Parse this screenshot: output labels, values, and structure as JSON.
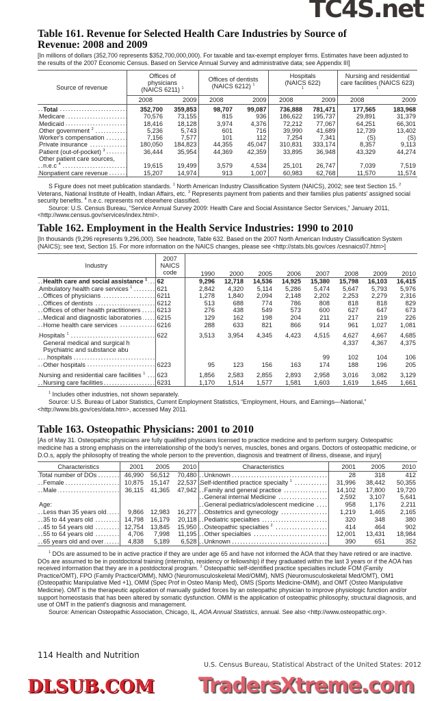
{
  "t161": {
    "title": "Table 161. Revenue for Selected Health Care Industries by Source of Revenue: 2008 and 2009",
    "note": "[In millions of dollars (352,700 represents $352,700,000,000). For taxable and tax-exempt employer firms. Estimates have been adjusted to the results of the 2007 Economic Census. Based on Service Annual Survey and administrative data; see Appendix III]",
    "header": {
      "source": "Source of revenue",
      "groups": [
        {
          "label": "Offices of physicians (NAICS 6211)",
          "sup": "1"
        },
        {
          "label": "Offices of dentists (NAICS 6212)",
          "sup": "1"
        },
        {
          "label": "Hospitals (NAICS 622)",
          "sup": "1"
        },
        {
          "label": "Nursing and residential care facilities (NAICS 623)",
          "sup": "1"
        }
      ],
      "years": [
        "2008",
        "2009"
      ]
    },
    "rows": [
      {
        "label": "Total",
        "bold": true,
        "indent": 1,
        "values": [
          "352,700",
          "359,853",
          "98,707",
          "99,087",
          "736,888",
          "781,471",
          "177,565",
          "183,968"
        ]
      },
      {
        "label": "Medicare",
        "values": [
          "70,576",
          "73,155",
          "815",
          "936",
          "186,622",
          "195,737",
          "29,891",
          "31,379"
        ]
      },
      {
        "label": "Medicaid",
        "values": [
          "18,416",
          "18,128",
          "3,974",
          "4,376",
          "72,212",
          "77,067",
          "64,251",
          "66,301"
        ]
      },
      {
        "label": "Other government",
        "sup": "2",
        "values": [
          "5,236",
          "5,743",
          "601",
          "716",
          "39,990",
          "41,689",
          "12,739",
          "13,402"
        ]
      },
      {
        "label": "Worker's compensation",
        "values": [
          "7,156",
          "7,577",
          "101",
          "112",
          "7,254",
          "7,341",
          "(S)",
          "(S)"
        ]
      },
      {
        "label": "Private insurance",
        "values": [
          "180,050",
          "184,823",
          "44,355",
          "45,047",
          "310,831",
          "333,174",
          "8,357",
          "9,113"
        ]
      },
      {
        "label": "Patient (out-of-pocket)",
        "sup": "3",
        "values": [
          "36,444",
          "35,954",
          "44,369",
          "42,359",
          "33,895",
          "36,948",
          "43,329",
          "44,274"
        ]
      },
      {
        "label": "Other patient care sources,",
        "nodots": true,
        "values": [
          "",
          "",
          "",
          "",
          "",
          "",
          "",
          ""
        ]
      },
      {
        "label": "n.e.c",
        "sup": "4",
        "indent": 1,
        "values": [
          "19,615",
          "19,499",
          "3,579",
          "4,534",
          "25,101",
          "26,747",
          "7,039",
          "7,519"
        ]
      },
      {
        "label": "Nonpatient care revenue",
        "values": [
          "15,207",
          "14,974",
          "913",
          "1,007",
          "60,983",
          "62,768",
          "11,570",
          "11,574"
        ]
      }
    ],
    "footnotes": [
      [
        {
          "t": "S Figure does not meet publication standards. "
        },
        {
          "s": "1"
        },
        {
          "t": " North American Industry Classification System (NAICS), 2002; see text Section 15. "
        },
        {
          "s": "2"
        },
        {
          "t": " Veterans, National Institute of Health, Indian Affairs, etc. "
        },
        {
          "s": "3"
        },
        {
          "t": " Represents payment from patients and their families plus patients' assigned social security benefits. "
        },
        {
          "s": "4"
        },
        {
          "t": " n.e.c. represents not elsewhere classified."
        }
      ],
      [
        {
          "t": "Source: U.S. Census Bureau, “Service Annual Survey 2009: Health Care and Social Assistance Sector Services,” January 2011, <http://www.census.gov/services/index.html>."
        }
      ]
    ]
  },
  "t162": {
    "title": "Table 162. Employment in the Health Service Industries: 1990 to 2010",
    "note": "[In thousands (9,296 represents 9,296,000). See headnote, Table 632. Based on the 2007 North American Industry Classification System (NAICS); see text, Section 15. For more information on the NAICS changes, please see <http://stats.bls.gov/ces /cesnaics07.htm>]",
    "header": {
      "industry": "Industry",
      "code": "2007 NAICS code",
      "years": [
        "1990",
        "2000",
        "2005",
        "2006",
        "2007",
        "2008",
        "2009",
        "2010"
      ]
    },
    "rows": [
      {
        "label": "Health care and social assistance",
        "sup": "1",
        "bold": true,
        "indent": 1,
        "code": "62",
        "values": [
          "9,296",
          "12,718",
          "14,536",
          "14,925",
          "15,380",
          "15,798",
          "16,103",
          "16,415"
        ]
      },
      {
        "label": "Ambulatory health care services",
        "sup": "1",
        "code": "621",
        "values": [
          "2,842",
          "4,320",
          "5,114",
          "5,286",
          "5,474",
          "5,647",
          "5,793",
          "5,976"
        ]
      },
      {
        "label": "Offices of physicians",
        "indent": 1,
        "code": "6211",
        "values": [
          "1,278",
          "1,840",
          "2,094",
          "2,148",
          "2,202",
          "2,253",
          "2,279",
          "2,316"
        ]
      },
      {
        "label": "Offices of dentists",
        "indent": 1,
        "code": "6212",
        "values": [
          "513",
          "688",
          "774",
          "786",
          "808",
          "818",
          "818",
          "829"
        ]
      },
      {
        "label": "Offices of other health practitioners",
        "indent": 1,
        "code": "6213",
        "values": [
          "276",
          "438",
          "549",
          "573",
          "600",
          "627",
          "647",
          "673"
        ]
      },
      {
        "label": "Medical and diagnostic laboratories",
        "indent": 1,
        "code": "6215",
        "values": [
          "129",
          "162",
          "198",
          "204",
          "211",
          "217",
          "219",
          "226"
        ]
      },
      {
        "label": "Home health care services",
        "indent": 1,
        "code": "6216",
        "values": [
          "288",
          "633",
          "821",
          "866",
          "914",
          "961",
          "1,027",
          "1,081"
        ]
      },
      {
        "spacer": true
      },
      {
        "label": "Hospitals",
        "sup": "1",
        "code": "622",
        "values": [
          "3,513",
          "3,954",
          "4,345",
          "4,423",
          "4,515",
          "4,627",
          "4,667",
          "4,685"
        ]
      },
      {
        "label": "General medical and surgical h",
        "indent": 1,
        "nodots": true,
        "code": "",
        "values": [
          "",
          "",
          "",
          "",
          "",
          "4,337",
          "4,367",
          "4,375"
        ]
      },
      {
        "label": "Psychiatric and substance abu",
        "indent": 1,
        "nodots": true,
        "code": "",
        "values": [
          "",
          "",
          "",
          "",
          "",
          "",
          "",
          ""
        ]
      },
      {
        "label": "hospitals",
        "indent": 2,
        "code": "",
        "values": [
          "",
          "",
          "",
          "",
          "99",
          "102",
          "104",
          "106"
        ]
      },
      {
        "label": "Other hospitals",
        "indent": 1,
        "code": "6223",
        "values": [
          "95",
          "123",
          "156",
          "163",
          "174",
          "188",
          "196",
          "205"
        ]
      },
      {
        "spacer": true
      },
      {
        "label": "Nursing and residential care facilities",
        "sup": "1",
        "code": "623",
        "values": [
          "1,856",
          "2,583",
          "2,855",
          "2,893",
          "2,958",
          "3,016",
          "3,082",
          "3,129"
        ]
      },
      {
        "label": "Nursing care facilities",
        "indent": 1,
        "code": "6231",
        "values": [
          "1,170",
          "1,514",
          "1,577",
          "1,581",
          "1,603",
          "1,619",
          "1,645",
          "1,661"
        ]
      }
    ],
    "footnotes": [
      [
        {
          "s": "1"
        },
        {
          "t": " Includes other industries, not shown separately."
        }
      ],
      [
        {
          "t": "Source: U.S. Bureau of Labor Statistics, Current Employment Statistics, “Employment, Hours, and Earnings—National,” <http://www.bls.gov/ces/data.htm>, accessed May 2011."
        }
      ]
    ]
  },
  "t163": {
    "title": "Table 163. Osteopathic Physicians: 2001 to 2010",
    "note": "[As of May 31. Osteopathic physicians are fully qualified physicians licensed to practice medicine and to perform surgery. Osteopathic medicine has a strong emphasis on the interrelationship of the body's nerves, muscles, bones and organs. Doctors of osteopathic medicine, or D.O.s, apply the philosophy of treating the whole person to the prevention, diagnosis and treatment of illness, disease, and injury]",
    "header": {
      "characteristics": "Characteristics",
      "years": [
        "2001",
        "2005",
        "2010"
      ]
    },
    "left": [
      {
        "label": "Total number of DOs",
        "values": [
          "46,990",
          "56,512",
          "70,480"
        ]
      },
      {
        "label": "Female",
        "indent": 1,
        "values": [
          "10,875",
          "15,147",
          "22,537"
        ]
      },
      {
        "label": "Male",
        "indent": 1,
        "values": [
          "36,115",
          "41,365",
          "47,942"
        ]
      },
      {
        "label": "",
        "nodots": true,
        "values": [
          "",
          "",
          ""
        ]
      },
      {
        "label": "Age:",
        "nodots": true,
        "values": [
          "",
          "",
          ""
        ]
      },
      {
        "label": "Less than 35 years old",
        "indent": 1,
        "values": [
          "9,866",
          "12,983",
          "16,277"
        ]
      },
      {
        "label": "35 to 44 years old",
        "indent": 1,
        "values": [
          "14,798",
          "16,179",
          "20,118"
        ]
      },
      {
        "label": "45 to 54 years old",
        "indent": 1,
        "values": [
          "12,754",
          "13,845",
          "15,950"
        ]
      },
      {
        "label": "55 to 64 years old",
        "indent": 1,
        "values": [
          "4,706",
          "7,998",
          "11,195"
        ]
      },
      {
        "label": "65 years old and over",
        "indent": 1,
        "values": [
          "4,838",
          "5,189",
          "6,528"
        ]
      }
    ],
    "right": [
      {
        "label": "Unknown",
        "indent": 1,
        "values": [
          "28",
          "318",
          "412"
        ]
      },
      {
        "label": "Self-identified practice specialty",
        "sup": "1",
        "values": [
          "31,996",
          "38,442",
          "50,355"
        ]
      },
      {
        "label": "Family and general practice",
        "indent": 1,
        "values": [
          "14,102",
          "17,800",
          "19,720"
        ]
      },
      {
        "label": "General internal Medicine",
        "indent": 1,
        "values": [
          "2,592",
          "3,107",
          "5,641"
        ]
      },
      {
        "label": "General pediatrics/adolescent medicine",
        "indent": 1,
        "values": [
          "958",
          "1,176",
          "2,211"
        ]
      },
      {
        "label": "Obstetrics and gynecology",
        "indent": 1,
        "values": [
          "1,219",
          "1,465",
          "2,165"
        ]
      },
      {
        "label": "Pediatric specialties",
        "indent": 1,
        "values": [
          "320",
          "348",
          "380"
        ]
      },
      {
        "label": "Osteopathic specialties",
        "sup": "2",
        "indent": 1,
        "values": [
          "414",
          "464",
          "902"
        ]
      },
      {
        "label": "Other specialties",
        "indent": 1,
        "values": [
          "12,001",
          "13,431",
          "18,984"
        ]
      },
      {
        "label": "Unknown",
        "indent": 1,
        "values": [
          "390",
          "651",
          "352"
        ]
      }
    ],
    "footnotes": [
      [
        {
          "s": "1"
        },
        {
          "t": " DOs are assumed to be in active practice if they are under age 65 and have not informed the AOA that they have retired or are inactive. DOs are assumed to be in postdoctoral training (internship, residency or fellowship) if they graduated within the last 3 years or if the AOA has received information that they are in a postdoctoral program. "
        },
        {
          "s": "2"
        },
        {
          "t": " Osteopathic self-identified practice specialties include FOM (Family Practice/OMT), FPO (Family Practice/OMM), NMO (Neuromusculoskeletal Med/OMM), NMS (Neuromusculoskeletal Med/OMT), OM1 (Osteopathic Manipulative Med +1), OMM (Spec Prof in Osteo Manip Med), OMS (Sports Medicine-OMM), and OMT (Osteo Manipulative Medicine). OMT is the therapeutic application of manually guided forces by an osteopathic physician to improve physiologic function and/or support homeostasis that has been altered by somatic dysfunction. OMM is the application of osteopathic philosophy, structural diagnosis, and use of OMT in the patient's diagnosis and management."
        }
      ],
      [
        {
          "t": "Source: American Osteopathic Association, Chicago, IL, "
        },
        {
          "i": "AOA Annual Statistics"
        },
        {
          "t": ", annual. See also <http://www.osteopathic.org>."
        }
      ]
    ]
  },
  "footer": {
    "page": "114  Health and Nutrition",
    "source": "U.S. Census Bureau, Statistical Abstract of the United States: 2012"
  },
  "watermarks": [
    "TC4S.net",
    "DLSUB.COM",
    "TradersXtreme.com"
  ]
}
